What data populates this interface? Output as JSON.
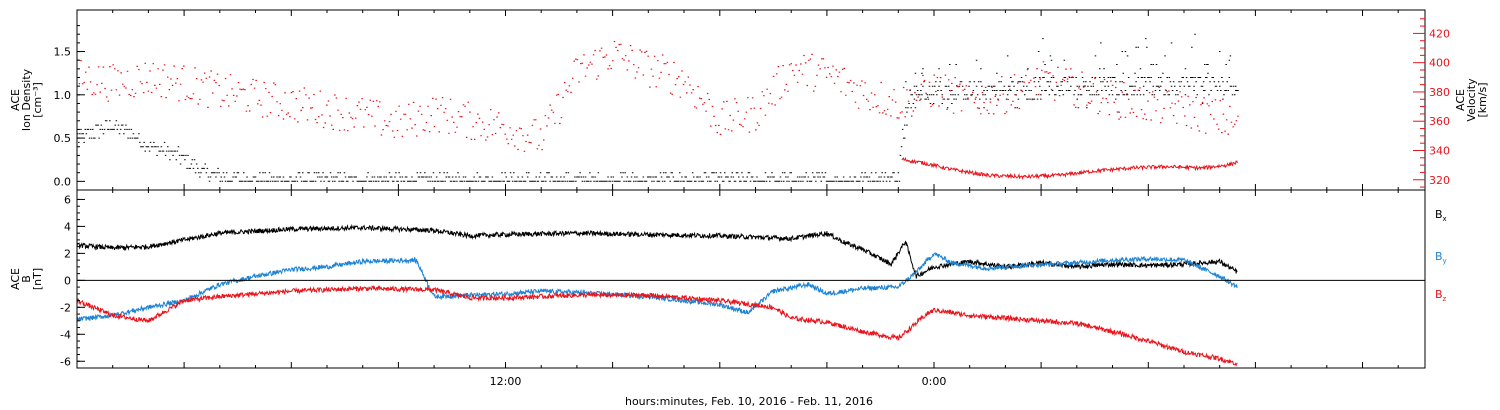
{
  "chart_data": [
    {
      "type": "scatter",
      "panel": "top",
      "x_range_hours": [
        0,
        37.75
      ],
      "x_labels": [
        "12:00",
        "0:00"
      ],
      "x_label_hours": [
        12,
        24
      ],
      "xlabel": "hours:minutes, Feb. 10, 2016 - Feb. 11, 2016",
      "left_axis": {
        "label_lines": [
          "ACE",
          "Ion Density",
          "[cm⁻³]"
        ],
        "ylim": [
          -0.1,
          1.98
        ],
        "ticks": [
          "0.0",
          "0.5",
          "1.0",
          "1.5"
        ],
        "tick_values": [
          0,
          0.5,
          1.0,
          1.5
        ],
        "color": "#000000"
      },
      "right_axis": {
        "label_lines": [
          "ACE",
          "Velocity",
          "[km/s]"
        ],
        "ylim": [
          313,
          436
        ],
        "ticks": [
          "320",
          "340",
          "360",
          "380",
          "400",
          "420"
        ],
        "tick_values": [
          320,
          340,
          360,
          380,
          400,
          420
        ],
        "color": "#e8141c"
      },
      "series": [
        {
          "color": "#000000",
          "axis": "left",
          "points": [
            [
              0,
              0.5
            ],
            [
              1,
              0.65
            ],
            [
              1.5,
              0.55
            ],
            [
              2,
              0.4
            ],
            [
              2.5,
              0.35
            ],
            [
              3,
              0.25
            ],
            [
              3.5,
              0.1
            ],
            [
              4,
              0.05
            ],
            [
              5,
              0.01
            ],
            [
              8,
              0.01
            ],
            [
              12,
              0.01
            ],
            [
              16,
              0.01
            ],
            [
              19,
              0.01
            ],
            [
              21,
              0.01
            ],
            [
              22,
              0.02
            ],
            [
              23,
              0.05
            ],
            [
              23.2,
              0.92
            ],
            [
              23.5,
              1.0
            ],
            [
              24,
              1.05
            ],
            [
              26,
              1.05
            ],
            [
              28,
              1.1
            ],
            [
              30,
              1.1
            ],
            [
              31,
              1.12
            ],
            [
              32,
              1.1
            ],
            [
              32.5,
              1.12
            ]
          ]
        },
        {
          "color": "#e8141c",
          "axis": "right",
          "points": [
            [
              0,
              390
            ],
            [
              1,
              386
            ],
            [
              2,
              390
            ],
            [
              3,
              386
            ],
            [
              4,
              380
            ],
            [
              5,
              376
            ],
            [
              6,
              372
            ],
            [
              7,
              368
            ],
            [
              8,
              364
            ],
            [
              9,
              358
            ],
            [
              10,
              366
            ],
            [
              11,
              360
            ],
            [
              12,
              356
            ],
            [
              13,
              348
            ],
            [
              14,
              394
            ],
            [
              15,
              406
            ],
            [
              16,
              396
            ],
            [
              17,
              388
            ],
            [
              18,
              360
            ],
            [
              19,
              366
            ],
            [
              20,
              396
            ],
            [
              21,
              392
            ],
            [
              22,
              380
            ],
            [
              23,
              372
            ],
            [
              24,
              382
            ],
            [
              25,
              374
            ],
            [
              26,
              378
            ],
            [
              27,
              388
            ],
            [
              28,
              382
            ],
            [
              29,
              375
            ],
            [
              30,
              371
            ],
            [
              31,
              368
            ],
            [
              32,
              362
            ],
            [
              32.5,
              356
            ]
          ]
        },
        {
          "color": "#e8141c",
          "axis": "right",
          "points": [
            [
              23.1,
              334
            ],
            [
              23.8,
              331
            ],
            [
              24.5,
              327
            ],
            [
              25.5,
              323
            ],
            [
              26.5,
              322
            ],
            [
              27.5,
              323
            ],
            [
              28.5,
              326
            ],
            [
              29.5,
              328
            ],
            [
              30.5,
              329
            ],
            [
              31.5,
              328
            ],
            [
              32.2,
              330
            ],
            [
              32.5,
              332
            ]
          ]
        }
      ]
    },
    {
      "type": "line",
      "panel": "bottom",
      "left_axis": {
        "label_lines": [
          "ACE",
          "B",
          "[nT]"
        ],
        "ylim": [
          -6.5,
          6.7
        ],
        "ticks": [
          "-6",
          "-4",
          "-2",
          "0",
          "2",
          "4",
          "6"
        ],
        "tick_values": [
          -6,
          -4,
          -2,
          0,
          2,
          4,
          6
        ]
      },
      "series": [
        {
          "name": "Bx",
          "color": "#000000",
          "points": [
            [
              0,
              2.6
            ],
            [
              1,
              2.4
            ],
            [
              2,
              2.5
            ],
            [
              3,
              3.0
            ],
            [
              4,
              3.5
            ],
            [
              6,
              3.8
            ],
            [
              8,
              3.9
            ],
            [
              10,
              3.7
            ],
            [
              11,
              3.3
            ],
            [
              12,
              3.4
            ],
            [
              14,
              3.5
            ],
            [
              16,
              3.4
            ],
            [
              18,
              3.3
            ],
            [
              20,
              3.1
            ],
            [
              21,
              3.5
            ],
            [
              21.5,
              2.8
            ],
            [
              22,
              2.3
            ],
            [
              22.8,
              1.2
            ],
            [
              23.2,
              2.9
            ],
            [
              23.5,
              0.3
            ],
            [
              24,
              1.0
            ],
            [
              25,
              1.4
            ],
            [
              26,
              1.0
            ],
            [
              27,
              1.3
            ],
            [
              28,
              1.0
            ],
            [
              29,
              1.2
            ],
            [
              30,
              1.1
            ],
            [
              31,
              1.2
            ],
            [
              32,
              1.4
            ],
            [
              32.5,
              0.6
            ]
          ]
        },
        {
          "name": "By",
          "color": "#1e83d2",
          "points": [
            [
              0,
              -2.9
            ],
            [
              1,
              -2.6
            ],
            [
              2,
              -2.0
            ],
            [
              3,
              -1.5
            ],
            [
              4,
              -0.3
            ],
            [
              5,
              0.3
            ],
            [
              6,
              0.8
            ],
            [
              7,
              1.0
            ],
            [
              8,
              1.4
            ],
            [
              9.5,
              1.5
            ],
            [
              10,
              -1.2
            ],
            [
              11,
              -1.1
            ],
            [
              12,
              -1.0
            ],
            [
              13,
              -0.8
            ],
            [
              14,
              -0.9
            ],
            [
              16,
              -1.2
            ],
            [
              18,
              -1.8
            ],
            [
              18.8,
              -2.4
            ],
            [
              19.5,
              -0.8
            ],
            [
              20.5,
              -0.3
            ],
            [
              21,
              -1.0
            ],
            [
              22,
              -0.6
            ],
            [
              23,
              -0.5
            ],
            [
              23.5,
              0.6
            ],
            [
              24,
              2.0
            ],
            [
              24.5,
              1.3
            ],
            [
              25.5,
              0.9
            ],
            [
              26.5,
              1.1
            ],
            [
              28,
              1.3
            ],
            [
              29,
              1.5
            ],
            [
              30,
              1.6
            ],
            [
              31,
              1.5
            ],
            [
              32,
              0.3
            ],
            [
              32.5,
              -0.5
            ]
          ]
        },
        {
          "name": "Bz",
          "color": "#e8141c",
          "points": [
            [
              0,
              -1.5
            ],
            [
              1,
              -2.6
            ],
            [
              2,
              -3.0
            ],
            [
              3,
              -1.5
            ],
            [
              4,
              -1.2
            ],
            [
              6,
              -0.8
            ],
            [
              8,
              -0.6
            ],
            [
              10,
              -0.7
            ],
            [
              11,
              -1.3
            ],
            [
              12,
              -1.3
            ],
            [
              14,
              -1.1
            ],
            [
              16,
              -1.1
            ],
            [
              18,
              -1.5
            ],
            [
              19.5,
              -2.0
            ],
            [
              20,
              -2.8
            ],
            [
              21,
              -3.1
            ],
            [
              22,
              -3.8
            ],
            [
              23,
              -4.3
            ],
            [
              23.8,
              -2.5
            ],
            [
              24,
              -2.2
            ],
            [
              25,
              -2.6
            ],
            [
              26,
              -2.8
            ],
            [
              27,
              -3.0
            ],
            [
              28,
              -3.2
            ],
            [
              29,
              -3.8
            ],
            [
              30,
              -4.5
            ],
            [
              31,
              -5.3
            ],
            [
              32,
              -5.8
            ],
            [
              32.5,
              -6.2
            ]
          ]
        }
      ],
      "legend": [
        "B",
        "B",
        "B"
      ],
      "legend_subscripts": [
        "x",
        "y",
        "z"
      ],
      "legend_colors": [
        "#000000",
        "#1e83d2",
        "#e8141c"
      ]
    }
  ]
}
